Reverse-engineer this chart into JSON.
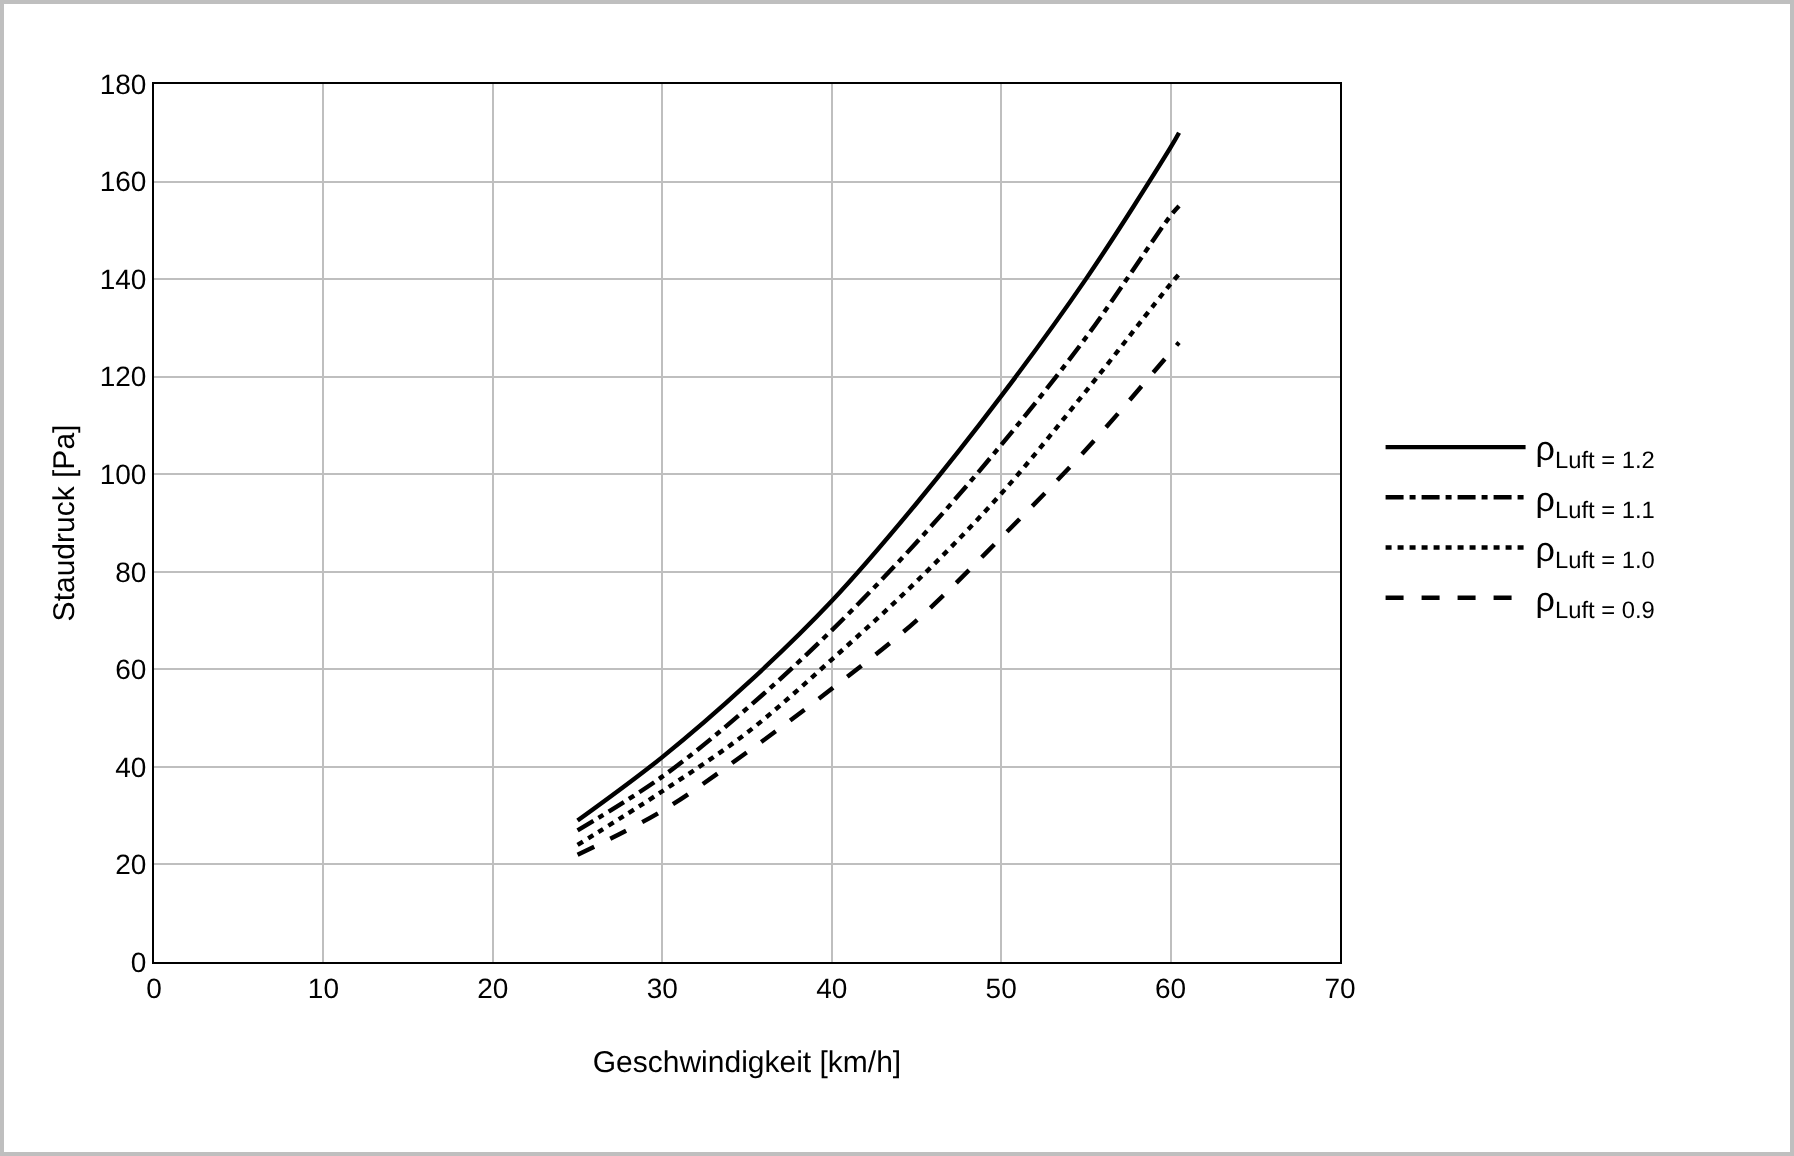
{
  "chart_data": {
    "type": "line",
    "xlabel": "Geschwindigkeit [km/h]",
    "ylabel": "Staudruck [Pa]",
    "x": [
      25,
      30,
      35,
      40,
      45,
      50,
      55,
      60,
      60.5
    ],
    "series": [
      {
        "name": "ρ$_{Luft = 1.2}$",
        "color": "#000000",
        "line_style": "solid",
        "values": [
          29,
          42,
          57,
          74,
          94,
          116,
          140,
          167,
          170
        ]
      },
      {
        "name": "ρ$_{Luft = 1.1}$",
        "color": "#000000",
        "line_style": "dashdot",
        "values": [
          27,
          38,
          52,
          68,
          86,
          106,
          128,
          153,
          155
        ]
      },
      {
        "name": "ρ$_{Luft = 1.0}$",
        "color": "#000000",
        "line_style": "dotted",
        "values": [
          24,
          35,
          47,
          62,
          78,
          96,
          117,
          139,
          141
        ]
      },
      {
        "name": "ρ$_{Luft = 0.9}$",
        "color": "#000000",
        "line_style": "dashed",
        "values": [
          22,
          31,
          43,
          56,
          70,
          87,
          105,
          125,
          127
        ]
      }
    ],
    "xlim": [
      0,
      70
    ],
    "xticks": [
      0,
      10,
      20,
      30,
      40,
      50,
      60,
      70
    ],
    "ylim": [
      0,
      180
    ],
    "yticks": [
      0,
      20,
      40,
      60,
      80,
      100,
      120,
      140,
      160,
      180
    ],
    "grid": true,
    "legend": "right",
    "marker": "none"
  }
}
